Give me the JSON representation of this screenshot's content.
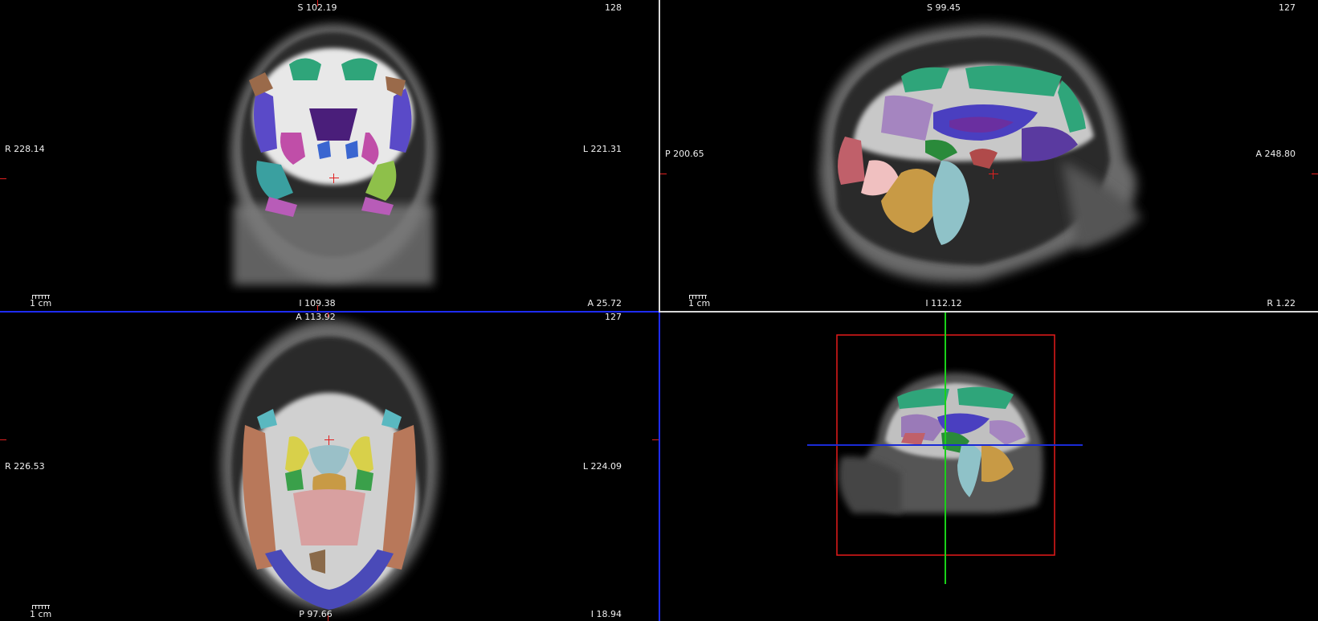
{
  "viewports": {
    "coronal": {
      "top": "S 102.19",
      "top_right": "128",
      "left": "R 228.14",
      "right": "L 221.31",
      "bottom": "I 109.38",
      "bottom_right": "A 25.72",
      "scale": "1 cm"
    },
    "sagittal": {
      "top": "S 99.45",
      "top_right": "127",
      "left": "P 200.65",
      "right": "A 248.80",
      "bottom": "I 112.12",
      "bottom_right": "R 1.22",
      "scale": "1 cm"
    },
    "axial": {
      "top": "A 113.92",
      "top_right": "127",
      "left": "R 226.53",
      "right": "L 224.09",
      "bottom": "P 97.66",
      "bottom_right": "I 18.94",
      "scale": "1 cm"
    },
    "view3d": {}
  },
  "colors": {
    "separator_white": "#d8d8d8",
    "separator_blue": "#1e2cff",
    "crosshair_red": "#e02020",
    "plane_green": "#19d119",
    "plane_blue": "#1a2bd6",
    "box_red": "#e61a1a"
  }
}
